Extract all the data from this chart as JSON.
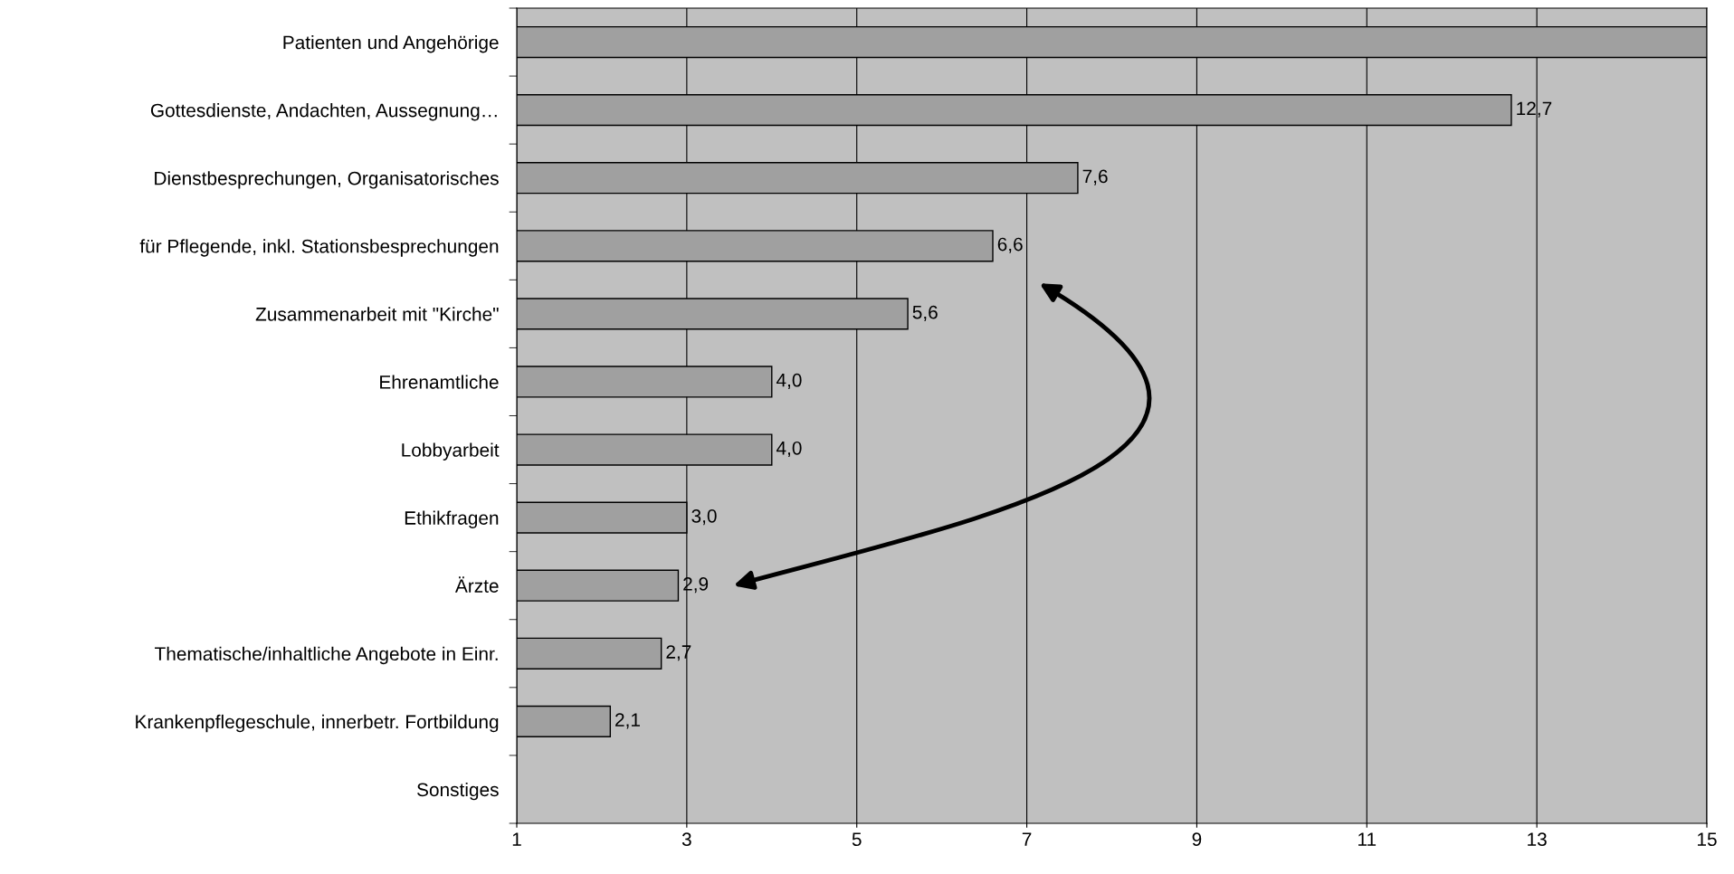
{
  "chart_data": {
    "type": "bar",
    "orientation": "horizontal",
    "categories": [
      "Patienten und Angehörige",
      "Gottesdienste, Andachten, Aussegnung…",
      "Dienstbesprechungen, Organisatorisches",
      "für Pflegende, inkl. Stationsbesprechungen",
      "Zusammenarbeit mit \"Kirche\"",
      "Ehrenamtliche",
      "Lobbyarbeit",
      "Ethikfragen",
      "Ärzte",
      "Thematische/inhaltliche Angebote in Einr.",
      "Krankenpflegeschule, innerbetr. Fortbildung",
      "Sonstiges"
    ],
    "values": [
      15,
      12.7,
      7.6,
      6.6,
      5.6,
      4.0,
      4.0,
      3.0,
      2.9,
      2.7,
      2.1,
      null
    ],
    "value_labels": [
      null,
      "12,7",
      "7,6",
      "6,6",
      "5,6",
      "4,0",
      "4,0",
      "3,0",
      "2,9",
      "2,7",
      "2,1",
      null
    ],
    "color": "#a0a0a0",
    "xlim": [
      1,
      15
    ],
    "xticks": [
      1,
      3,
      5,
      7,
      9,
      11,
      13,
      15
    ],
    "grid": "x"
  }
}
